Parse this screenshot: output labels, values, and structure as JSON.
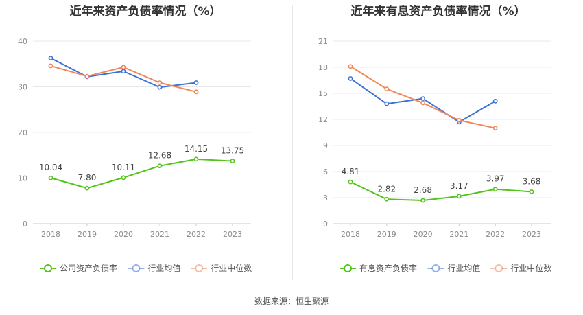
{
  "source_text": "数据来源：恒生聚源",
  "chart_data": [
    {
      "type": "line",
      "title": "近年来资产负债率情况（%）",
      "categories": [
        "2018",
        "2019",
        "2020",
        "2021",
        "2022",
        "2023"
      ],
      "ylim": [
        0,
        40
      ],
      "yticks": [
        0,
        10,
        20,
        30,
        40
      ],
      "grid": true,
      "legend_position": "bottom",
      "series": [
        {
          "name": "公司资产负债率",
          "color": "#52c41a",
          "values": [
            10.04,
            7.8,
            10.11,
            12.68,
            14.15,
            13.75
          ],
          "labels": [
            "10.04",
            "7.80",
            "10.11",
            "12.68",
            "14.15",
            "13.75"
          ]
        },
        {
          "name": "行业均值",
          "color": "#3f6fd8",
          "values": [
            36.3,
            32.2,
            33.4,
            29.9,
            30.9,
            null
          ]
        },
        {
          "name": "行业中位数",
          "color": "#f0875a",
          "values": [
            34.6,
            32.3,
            34.3,
            30.9,
            28.9,
            null
          ]
        }
      ]
    },
    {
      "type": "line",
      "title": "近年来有息资产负债率情况（%）",
      "categories": [
        "2018",
        "2019",
        "2020",
        "2021",
        "2022",
        "2023"
      ],
      "ylim": [
        0,
        21
      ],
      "yticks": [
        0,
        3,
        6,
        9,
        12,
        15,
        18,
        21
      ],
      "grid": true,
      "legend_position": "bottom",
      "series": [
        {
          "name": "有息资产负债率",
          "color": "#52c41a",
          "values": [
            4.81,
            2.82,
            2.68,
            3.17,
            3.97,
            3.68
          ],
          "labels": [
            "4.81",
            "2.82",
            "2.68",
            "3.17",
            "3.97",
            "3.68"
          ]
        },
        {
          "name": "行业均值",
          "color": "#3f6fd8",
          "values": [
            16.7,
            13.8,
            14.4,
            11.7,
            14.1,
            null
          ]
        },
        {
          "name": "行业中位数",
          "color": "#f0875a",
          "values": [
            18.1,
            15.5,
            13.9,
            11.9,
            11.0,
            null
          ]
        }
      ]
    }
  ]
}
